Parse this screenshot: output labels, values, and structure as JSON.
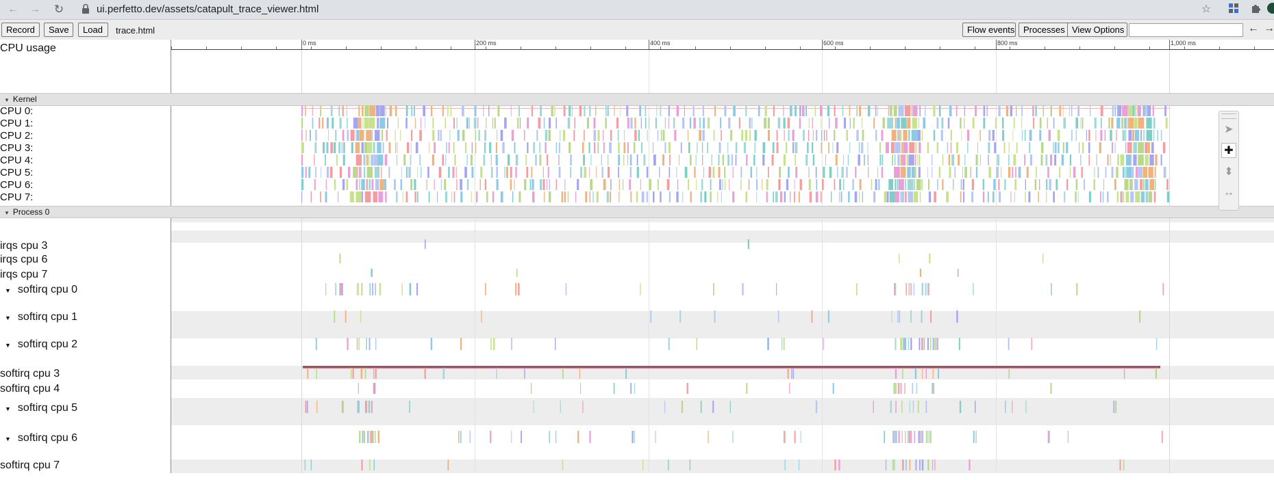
{
  "browser": {
    "url": "ui.perfetto.dev/assets/catapult_trace_viewer.html",
    "icons": [
      "back-icon",
      "forward-icon",
      "reload-icon",
      "lock-icon",
      "star-icon",
      "extension-icon",
      "puzzle-icon"
    ]
  },
  "toolbar": {
    "record_label": "Record",
    "save_label": "Save",
    "load_label": "Load",
    "filename": "trace.html",
    "flow_events_label": "Flow events",
    "processes_label": "Processes",
    "view_options_label": "View Options",
    "search_value": "",
    "prev_arrow": "←",
    "next_arrow": "→"
  },
  "ruler": {
    "labels": [
      "0 ms",
      "200 ms",
      "400 ms",
      "600 ms",
      "800 ms",
      "1,000 ms"
    ],
    "values_ms": [
      0,
      200,
      400,
      600,
      800,
      1000
    ]
  },
  "cpu_usage": {
    "label": "CPU usage"
  },
  "kernel": {
    "title": "Kernel",
    "cpus": [
      "CPU 0:",
      "CPU 1:",
      "CPU 2:",
      "CPU 3:",
      "CPU 4:",
      "CPU 5:",
      "CPU 6:",
      "CPU 7:"
    ]
  },
  "process": {
    "title": "Process 0",
    "tracks": [
      {
        "label": "irqs cpu 3",
        "expandable": false
      },
      {
        "label": "irqs cpu 6",
        "expandable": false
      },
      {
        "label": "irqs cpu 7",
        "expandable": false
      },
      {
        "label": "softirq cpu 0",
        "expandable": true
      },
      {
        "label": "softirq cpu 1",
        "expandable": true
      },
      {
        "label": "softirq cpu 2",
        "expandable": true
      },
      {
        "label": "softirq cpu 3",
        "expandable": false
      },
      {
        "label": "softirq cpu 4",
        "expandable": false
      },
      {
        "label": "softirq cpu 5",
        "expandable": true
      },
      {
        "label": "softirq cpu 6",
        "expandable": true
      },
      {
        "label": "softirq cpu 7",
        "expandable": false
      }
    ]
  },
  "mode_selector": {
    "modes": [
      "select-mode-icon",
      "pan-mode-icon",
      "zoom-mode-icon",
      "timing-mode-icon"
    ],
    "active": "pan-mode-icon"
  },
  "colors": {
    "slice_palette": [
      "#9fd8d6",
      "#7fcfc9",
      "#b9d98a",
      "#a6a6f0",
      "#f0b37e",
      "#e9a0d8",
      "#8ecae6",
      "#c7e28c",
      "#f59ca0",
      "#b5c7f2"
    ],
    "thread_bar": "#a05060"
  }
}
